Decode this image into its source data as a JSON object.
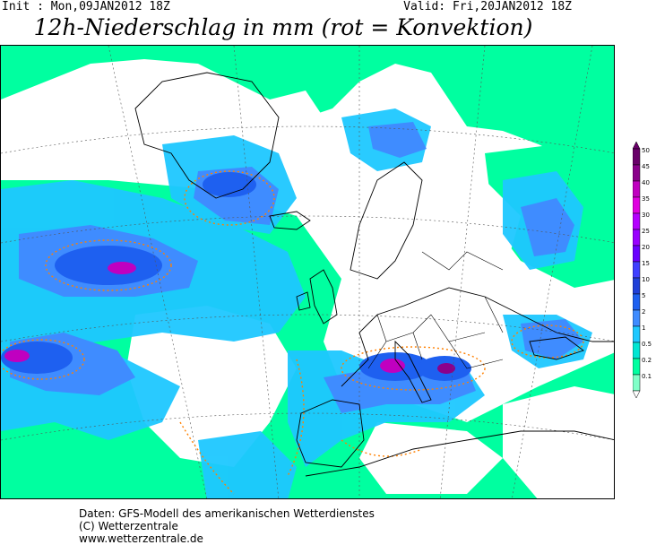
{
  "header": {
    "init": "Init : Mon,09JAN2012 18Z",
    "valid": "Valid: Fri,20JAN2012 18Z",
    "title": "12h-Niederschlag in mm (rot = Konvektion)"
  },
  "legend": {
    "levels": [
      "50",
      "45",
      "40",
      "35",
      "30",
      "25",
      "20",
      "15",
      "10",
      "5",
      "2",
      "1",
      "0.5",
      "0.2",
      "0.1"
    ],
    "colors": [
      "#6a006a",
      "#8b008b",
      "#c000c0",
      "#e000e0",
      "#b400ff",
      "#9900ff",
      "#6a00ff",
      "#4040ff",
      "#2040d8",
      "#1e60f0",
      "#3f8cff",
      "#1ec8ff",
      "#00e6d2",
      "#00ffa0",
      "#80ffc8"
    ]
  },
  "map": {
    "colors": {
      "background": "#ffffff",
      "light_precip": "#00ffa0",
      "teal_precip": "#00e6d2",
      "cyan_precip": "#1ec8ff",
      "blue_precip": "#3f8cff",
      "dark_blue_precip": "#1e60f0",
      "heavy_precip": "#c000c0",
      "convection_contour": "#ff8000",
      "coastline": "#000000"
    }
  },
  "footer": {
    "line1": "Daten: GFS-Modell des amerikanischen Wetterdienstes",
    "line2": "(C) Wetterzentrale",
    "line3": "www.wetterzentrale.de"
  }
}
